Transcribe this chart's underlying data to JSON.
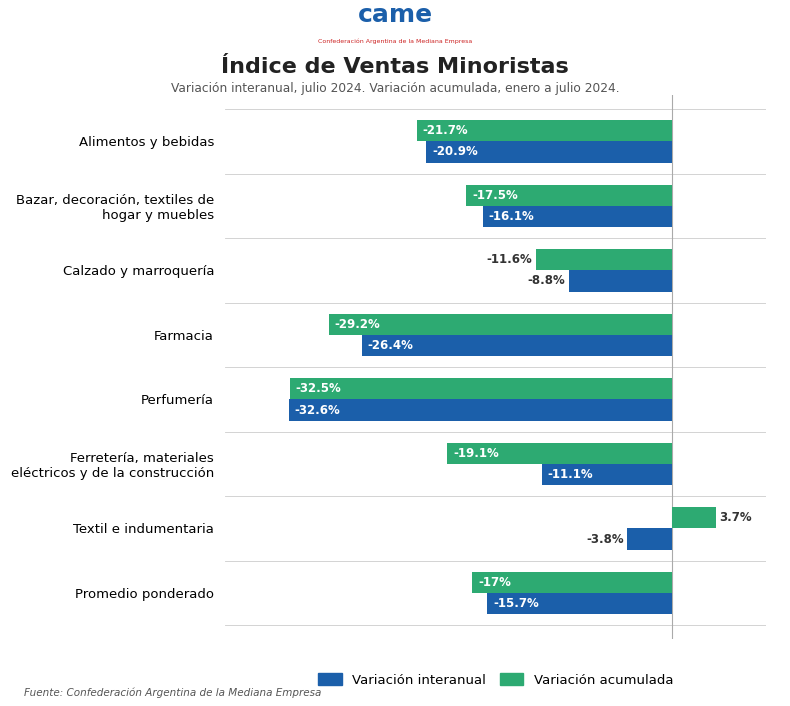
{
  "title": "Índice de Ventas Minoristas",
  "subtitle": "Variación interanual, julio 2024. Variación acumulada, enero a julio 2024.",
  "categories": [
    "Alimentos y bebidas",
    "Bazar, decoración, textiles de\nhogar y muebles",
    "Calzado y marroquería",
    "Farmacia",
    "Perfumería",
    "Ferretería, materiales\neléctricos y de la construcción",
    "Textil e indumentaria",
    "Promedio ponderado"
  ],
  "interanual": [
    -20.9,
    -16.1,
    -8.8,
    -26.4,
    -32.6,
    -11.1,
    -3.8,
    -15.7
  ],
  "acumulada": [
    -21.7,
    -17.5,
    -11.6,
    -29.2,
    -32.5,
    -19.1,
    3.7,
    -17.0
  ],
  "interanual_labels": [
    "-20.9%",
    "-16.1%",
    "-8.8%",
    "-26.4%",
    "-32.6%",
    "-11.1%",
    "-3.8%",
    "-15.7%"
  ],
  "acumulada_labels": [
    "-21.7%",
    "-17.5%",
    "-11.6%",
    "-29.2%",
    "-32.5%",
    "-19.1%",
    "3.7%",
    "-17%"
  ],
  "interanual_label_inside": [
    true,
    true,
    false,
    true,
    true,
    true,
    false,
    true
  ],
  "acumulada_label_inside": [
    true,
    true,
    false,
    true,
    true,
    true,
    false,
    true
  ],
  "color_interanual": "#1b5faa",
  "color_acumulada": "#2daa72",
  "bar_height": 0.33,
  "xlim_min": -38,
  "xlim_max": 8,
  "background_color": "#ffffff",
  "footer": "Fuente: Confederación Argentina de la Mediana Empresa",
  "legend_interanual": "Variación interanual",
  "legend_acumulada": "Variación acumulada",
  "label_fontsize": 8.5,
  "label_color_inside": "#ffffff",
  "label_color_outside": "#333333"
}
